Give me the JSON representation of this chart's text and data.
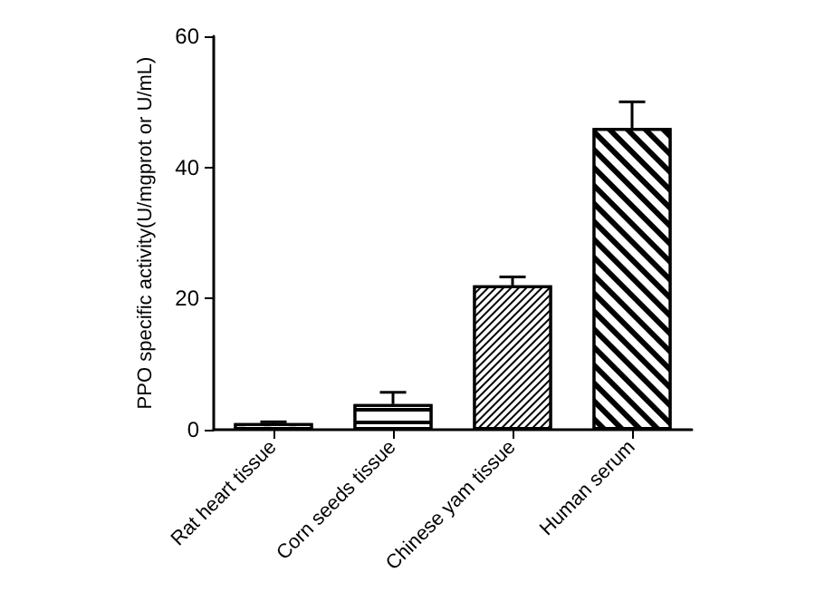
{
  "chart_data": {
    "type": "bar",
    "ylabel": "PPO specific activity(U/mgprot or U/mL)",
    "categories": [
      "Rat heart tissue",
      "Corn seeds tissue",
      "Chinese yam tissue",
      "Human serum"
    ],
    "values": [
      1,
      3.9,
      22,
      46
    ],
    "errors": [
      0.2,
      1.8,
      1.3,
      4
    ],
    "color": "#ffffff",
    "ylim": [
      0,
      60
    ],
    "yticks": [
      0,
      20,
      40,
      60
    ],
    "grid": false
  }
}
